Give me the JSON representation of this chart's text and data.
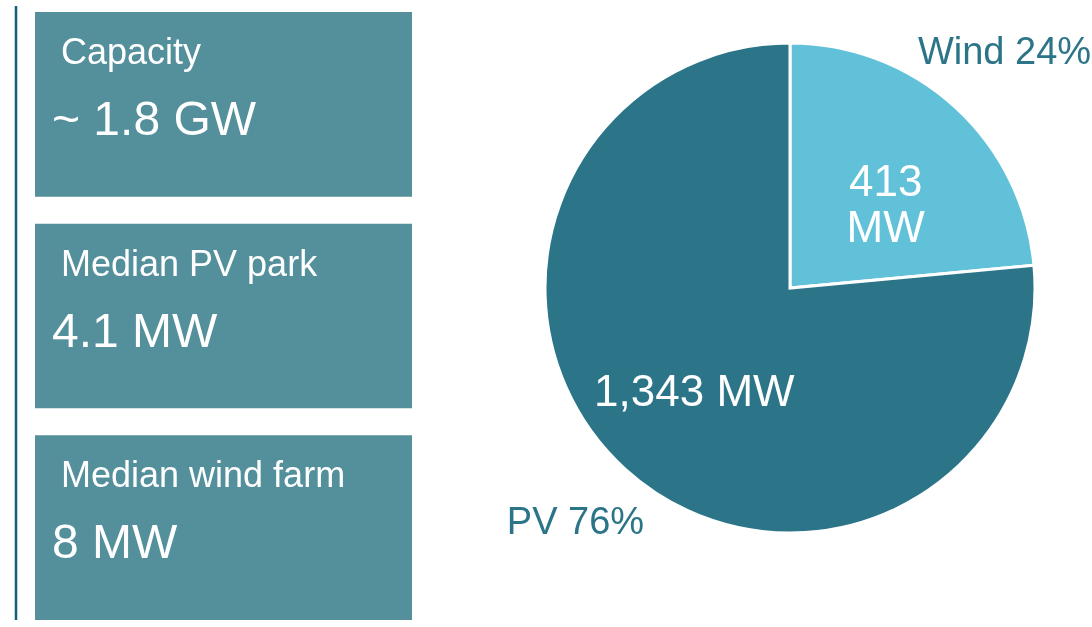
{
  "chart_data": [
    {
      "type": "other",
      "annotations": [
        "Capacity",
        "~ 1.8 GW",
        "Median PV park",
        "4.1 MW",
        "Median wind farm",
        "8 MW"
      ]
    },
    {
      "type": "pie",
      "categories": [
        "Wind 24%",
        "PV 76%"
      ],
      "values": [
        413,
        1343
      ],
      "colors": [
        "#60c1d9",
        "#2c7589"
      ],
      "value_labels": [
        "413 MW",
        "1,343 MW"
      ]
    }
  ]
}
